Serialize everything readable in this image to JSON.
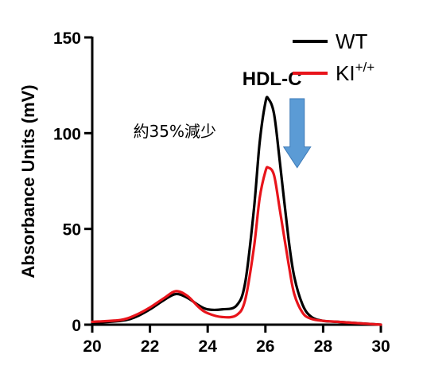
{
  "chart_data": {
    "type": "line",
    "title": "",
    "xlabel": "",
    "ylabel": "Absorbance Units (mV)",
    "xlim": [
      20,
      30
    ],
    "ylim": [
      0,
      150
    ],
    "x_ticks": [
      20,
      22,
      24,
      26,
      28,
      30
    ],
    "y_ticks": [
      0,
      50,
      100,
      150
    ],
    "grid": false,
    "legend_position": "top-right",
    "series": [
      {
        "name": "WT",
        "color": "#000000",
        "x": [
          20,
          21,
          21.5,
          22,
          22.5,
          22.9,
          23.3,
          23.7,
          24,
          24.5,
          25,
          25.3,
          25.6,
          25.8,
          26,
          26.1,
          26.3,
          26.5,
          26.8,
          27,
          27.3,
          27.6,
          28,
          28.5,
          29,
          29.5,
          30
        ],
        "y": [
          1,
          2,
          4,
          8,
          13,
          16,
          14,
          10,
          8,
          8,
          10,
          22,
          60,
          95,
          116,
          118,
          110,
          85,
          45,
          25,
          10,
          4,
          2,
          1.5,
          1,
          0.5,
          0
        ]
      },
      {
        "name": "KI",
        "name_sup": "+/+",
        "color": "#e8141b",
        "x": [
          20,
          21,
          21.5,
          22,
          22.5,
          22.9,
          23.3,
          23.7,
          24,
          24.5,
          25,
          25.3,
          25.6,
          25.8,
          26,
          26.1,
          26.3,
          26.5,
          26.8,
          27,
          27.3,
          27.6,
          28,
          28.5,
          29,
          29.5,
          30
        ],
        "y": [
          1.5,
          2.5,
          5,
          9,
          14,
          17.5,
          15,
          9,
          6,
          4,
          5,
          13,
          40,
          66,
          80,
          82,
          78,
          60,
          32,
          16,
          6,
          3,
          2,
          1.5,
          1,
          0.5,
          0
        ]
      }
    ],
    "annotations": [
      {
        "text": "HDL-C",
        "x": 25.2,
        "y": 125
      },
      {
        "text": "約35%減少",
        "x": 23.9,
        "y": 98
      }
    ],
    "arrow": {
      "x": 27.1,
      "y_from": 118,
      "y_to": 82,
      "color": "#5b9bd5"
    }
  }
}
